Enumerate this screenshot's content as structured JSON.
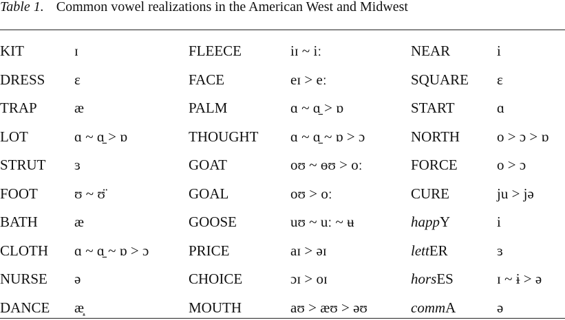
{
  "caption": {
    "label": "Table 1.",
    "title": "Common vowel realizations in the American West and Midwest"
  },
  "table": {
    "rows": [
      [
        "KIT",
        "ɪ",
        "FLEECE",
        "iɪ ~ iː",
        "NEAR",
        "i"
      ],
      [
        "DRESS",
        "ɛ",
        "FACE",
        "eɪ > eː",
        "SQUARE",
        "ɛ"
      ],
      [
        "TRAP",
        "æ",
        "PALM",
        "ɑ ~ ɑ̠ > ɒ",
        "START",
        "ɑ"
      ],
      [
        "LOT",
        "ɑ ~ ɑ̠ > ɒ",
        "THOUGHT",
        "ɑ ~ ɑ̠ ~ ɒ > ɔ",
        "NORTH",
        "o > ɔ > ɒ"
      ],
      [
        "STRUT",
        "ɜ",
        "GOAT",
        "oʊ ~ ɵʊ > oː",
        "FORCE",
        "o > ɔ"
      ],
      [
        "FOOT",
        "ʊ ~ ʊ̈",
        "GOAL",
        "oʊ > oː",
        "CURE",
        "ju > jə"
      ],
      [
        "BATH",
        "æ",
        "GOOSE",
        "uʊ ~ uː ~ ʉ",
        {
          "italic": "happ",
          "plain": "Y"
        },
        "i"
      ],
      [
        "CLOTH",
        "ɑ ~ ɑ̠ ~ ɒ > ɔ",
        "PRICE",
        "aɪ > əɪ",
        {
          "italic": "lett",
          "plain": "ER"
        },
        "ɜ"
      ],
      [
        "NURSE",
        "ə",
        "CHOICE",
        "ɔɪ > oɪ",
        {
          "italic": "hors",
          "plain": "ES"
        },
        "ɪ ~ ɨ > ə"
      ],
      [
        "DANCE",
        "æ̝",
        "MOUTH",
        "aʊ > æʊ > əʊ",
        {
          "italic": "comm",
          "plain": "A"
        },
        "ə"
      ]
    ]
  }
}
